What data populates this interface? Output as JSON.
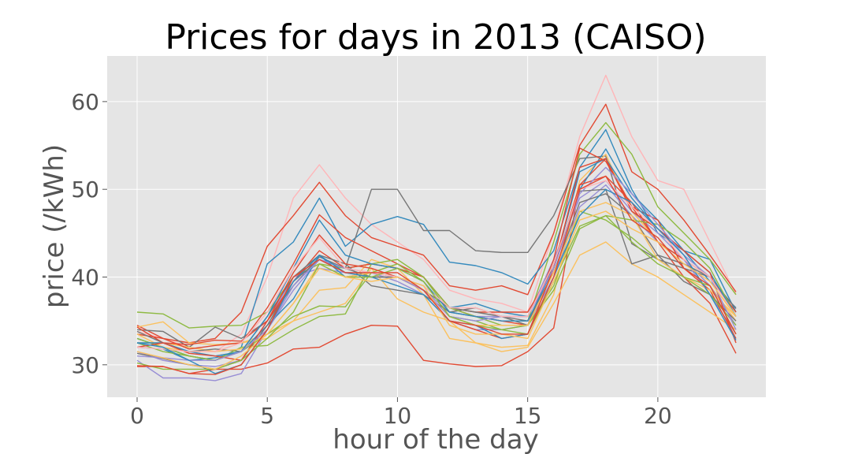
{
  "chart_data": {
    "type": "line",
    "title": "Prices for days in 2013 (CAISO)",
    "xlabel": "hour of the day",
    "ylabel": "price (/kWh)",
    "xlim": [
      -1.15,
      24.15
    ],
    "ylim": [
      26.3,
      65.2
    ],
    "xticks": [
      0,
      5,
      10,
      15,
      20
    ],
    "yticks": [
      30,
      40,
      50,
      60
    ],
    "grid": true,
    "legend": "none",
    "background": "#e5e5e5",
    "grid_color": "#ffffff",
    "x": [
      0,
      1,
      2,
      3,
      4,
      5,
      6,
      7,
      8,
      9,
      10,
      11,
      12,
      13,
      14,
      15,
      16,
      17,
      18,
      19,
      20,
      21,
      22,
      23
    ],
    "series": [
      {
        "color": "#ffb5b8",
        "values": [
          33.8,
          33.0,
          32.0,
          31.5,
          33.5,
          40.0,
          49.0,
          52.8,
          49.0,
          46.0,
          44.0,
          42.0,
          38.5,
          37.5,
          37.0,
          36.0,
          45.0,
          56.0,
          63.0,
          56.0,
          51.0,
          50.0,
          44.0,
          38.0
        ]
      },
      {
        "color": "#e24a33",
        "values": [
          34.5,
          33.0,
          32.5,
          33.0,
          36.0,
          43.5,
          47.0,
          50.8,
          47.0,
          44.5,
          43.5,
          42.5,
          39.0,
          38.5,
          39.0,
          38.0,
          45.0,
          55.0,
          59.7,
          52.0,
          50.0,
          46.5,
          42.5,
          38.3
        ]
      },
      {
        "color": "#e24a33",
        "values": [
          29.8,
          29.8,
          29.0,
          29.5,
          29.5,
          30.2,
          31.8,
          32.0,
          33.5,
          34.5,
          34.4,
          30.5,
          30.1,
          29.8,
          29.9,
          31.5,
          34.2,
          50.5,
          53.5,
          48.0,
          44.0,
          40.0,
          37.0,
          31.3
        ]
      },
      {
        "color": "#348abd",
        "values": [
          33.0,
          32.0,
          31.0,
          30.5,
          32.0,
          41.5,
          44.0,
          49.0,
          43.5,
          46.0,
          46.9,
          46.0,
          41.7,
          41.3,
          40.5,
          39.2,
          43.0,
          52.5,
          56.8,
          50.0,
          45.0,
          43.0,
          42.0,
          36.0
        ]
      },
      {
        "color": "#777777",
        "values": [
          34.0,
          33.8,
          32.0,
          34.3,
          33.0,
          35.0,
          39.0,
          42.3,
          41.0,
          50.0,
          50.0,
          45.3,
          45.3,
          43.0,
          42.8,
          42.8,
          47.0,
          53.5,
          53.8,
          43.8,
          42.0,
          41.0,
          40.0,
          36.0
        ]
      },
      {
        "color": "#8eba42",
        "values": [
          36.0,
          35.8,
          34.2,
          34.4,
          34.5,
          36.0,
          40.0,
          41.5,
          41.0,
          41.5,
          41.0,
          40.0,
          36.0,
          35.5,
          35.0,
          35.0,
          44.0,
          54.0,
          57.6,
          54.0,
          48.0,
          45.0,
          42.0,
          38.0
        ]
      },
      {
        "color": "#fbc15e",
        "values": [
          34.3,
          34.9,
          32.5,
          32.3,
          32.5,
          33.0,
          35.0,
          38.5,
          38.8,
          42.0,
          41.0,
          38.0,
          33.0,
          32.5,
          32.0,
          32.2,
          38.0,
          51.0,
          54.0,
          47.5,
          44.0,
          42.0,
          39.0,
          35.0
        ]
      },
      {
        "color": "#fbc15e",
        "values": [
          32.5,
          32.5,
          32.0,
          31.5,
          32.5,
          33.5,
          35.0,
          36.0,
          37.0,
          41.0,
          37.5,
          36.0,
          35.0,
          32.5,
          31.5,
          32.0,
          37.0,
          42.5,
          44.0,
          41.5,
          40.0,
          38.0,
          36.0,
          34.0
        ]
      },
      {
        "color": "#988ed5",
        "values": [
          30.5,
          28.5,
          28.5,
          28.2,
          29.0,
          34.0,
          38.5,
          42.0,
          40.5,
          40.5,
          39.5,
          38.0,
          35.0,
          34.0,
          34.0,
          34.5,
          40.0,
          48.0,
          50.5,
          47.0,
          44.0,
          42.0,
          39.0,
          34.5
        ]
      },
      {
        "color": "#988ed5",
        "values": [
          31.5,
          30.5,
          30.0,
          29.8,
          30.5,
          35.0,
          40.0,
          41.0,
          40.5,
          40.0,
          40.0,
          38.5,
          36.0,
          35.5,
          35.5,
          35.5,
          42.0,
          49.0,
          51.0,
          47.5,
          45.0,
          42.0,
          38.0,
          33.5
        ]
      },
      {
        "color": "#348abd",
        "values": [
          32.0,
          31.8,
          30.5,
          30.8,
          31.5,
          34.5,
          37.5,
          42.5,
          40.0,
          40.5,
          40.0,
          39.0,
          36.5,
          37.0,
          36.0,
          35.5,
          41.5,
          50.0,
          54.6,
          49.5,
          46.5,
          43.0,
          39.5,
          36.5
        ]
      },
      {
        "color": "#e24a33",
        "values": [
          33.5,
          33.0,
          31.8,
          32.2,
          32.5,
          36.5,
          41.5,
          47.1,
          44.5,
          43.0,
          41.5,
          40.0,
          36.5,
          35.5,
          35.0,
          34.5,
          42.0,
          54.7,
          53.2,
          48.0,
          46.5,
          41.0,
          38.5,
          33.0
        ]
      },
      {
        "color": "#e24a33",
        "values": [
          34.3,
          32.5,
          32.3,
          32.8,
          32.7,
          35.0,
          39.5,
          43.0,
          41.0,
          41.5,
          41.0,
          40.0,
          36.5,
          36.0,
          36.0,
          36.0,
          41.0,
          50.5,
          51.5,
          48.5,
          44.0,
          42.0,
          40.0,
          36.0
        ]
      },
      {
        "color": "#777777",
        "values": [
          33.8,
          32.5,
          31.5,
          31.8,
          31.5,
          35.5,
          40.0,
          42.5,
          41.5,
          39.0,
          38.5,
          38.0,
          36.0,
          36.5,
          35.5,
          34.5,
          41.5,
          49.8,
          50.0,
          41.5,
          42.5,
          41.5,
          40.0,
          36.4
        ]
      },
      {
        "color": "#777777",
        "values": [
          31.3,
          30.7,
          30.0,
          29.5,
          30.5,
          34.5,
          39.5,
          42.0,
          41.0,
          40.0,
          40.0,
          38.5,
          36.5,
          36.0,
          35.5,
          35.0,
          40.5,
          48.5,
          49.5,
          47.0,
          42.5,
          39.5,
          38.0,
          35.0
        ]
      },
      {
        "color": "#8eba42",
        "values": [
          33.0,
          32.0,
          31.0,
          30.5,
          32.0,
          32.2,
          34.0,
          35.5,
          35.8,
          41.5,
          42.0,
          40.0,
          36.5,
          35.5,
          34.5,
          34.5,
          38.5,
          45.5,
          47.0,
          46.5,
          46.0,
          44.0,
          41.0,
          35.5
        ]
      },
      {
        "color": "#8eba42",
        "values": [
          32.5,
          31.5,
          31.0,
          30.5,
          31.5,
          33.5,
          35.5,
          36.7,
          36.6,
          40.5,
          41.5,
          39.5,
          35.5,
          35.0,
          34.0,
          34.5,
          39.0,
          47.5,
          46.5,
          44.5,
          42.0,
          40.0,
          38.0,
          34.5
        ]
      },
      {
        "color": "#fbc15e",
        "values": [
          33.5,
          32.0,
          31.5,
          31.5,
          31.8,
          33.5,
          37.0,
          41.5,
          40.0,
          40.5,
          40.0,
          38.5,
          35.5,
          34.5,
          34.5,
          34.5,
          40.5,
          47.5,
          48.5,
          47.0,
          42.0,
          40.0,
          38.5,
          35.5
        ]
      },
      {
        "color": "#348abd",
        "values": [
          32.5,
          32.5,
          31.5,
          31.0,
          31.5,
          35.5,
          41.0,
          46.5,
          42.5,
          41.5,
          41.0,
          39.5,
          36.0,
          35.5,
          35.0,
          35.0,
          41.0,
          52.0,
          53.5,
          49.0,
          45.5,
          43.0,
          40.5,
          35.5
        ]
      },
      {
        "color": "#e24a33",
        "values": [
          32.0,
          32.5,
          31.3,
          31.0,
          30.5,
          35.0,
          40.5,
          44.8,
          41.5,
          41.0,
          40.0,
          38.5,
          35.0,
          34.0,
          33.0,
          33.5,
          41.0,
          52.5,
          53.5,
          47.5,
          45.5,
          43.0,
          40.5,
          32.5
        ]
      },
      {
        "color": "#988ed5",
        "values": [
          31.0,
          30.8,
          30.5,
          30.5,
          31.5,
          34.0,
          39.0,
          42.0,
          41.0,
          40.5,
          40.0,
          38.5,
          35.5,
          35.0,
          35.5,
          35.5,
          41.0,
          49.5,
          52.5,
          49.5,
          46.0,
          42.5,
          40.0,
          34.0
        ]
      },
      {
        "color": "#ffb5b8",
        "values": [
          32.0,
          31.8,
          31.5,
          31.5,
          32.5,
          36.0,
          41.0,
          44.5,
          41.0,
          40.5,
          40.0,
          39.0,
          36.5,
          36.5,
          35.5,
          35.5,
          41.5,
          50.0,
          51.0,
          48.0,
          45.5,
          42.0,
          40.0,
          35.5
        ]
      },
      {
        "color": "#348abd",
        "values": [
          32.5,
          32.0,
          30.5,
          29.0,
          30.0,
          34.0,
          39.5,
          42.5,
          40.5,
          40.0,
          39.0,
          38.0,
          35.0,
          34.5,
          33.0,
          33.5,
          40.0,
          47.0,
          50.0,
          48.5,
          45.5,
          42.5,
          38.0,
          32.8
        ]
      },
      {
        "color": "#8eba42",
        "values": [
          30.2,
          29.5,
          29.5,
          29.5,
          30.5,
          33.0,
          36.0,
          41.5,
          40.0,
          40.0,
          41.0,
          39.5,
          35.5,
          34.5,
          34.0,
          33.5,
          39.5,
          45.8,
          47.0,
          44.0,
          41.5,
          40.0,
          39.0,
          33.5
        ]
      },
      {
        "color": "#fbc15e",
        "values": [
          31.5,
          30.8,
          30.0,
          29.5,
          31.0,
          33.5,
          37.0,
          41.0,
          40.0,
          39.5,
          40.0,
          39.0,
          34.5,
          33.5,
          33.5,
          33.0,
          39.5,
          46.5,
          47.5,
          45.5,
          44.0,
          41.5,
          39.5,
          35.5
        ]
      },
      {
        "color": "#e24a33",
        "values": [
          29.9,
          29.8,
          29.0,
          28.9,
          30.0,
          34.0,
          40.0,
          42.0,
          40.5,
          40.5,
          40.5,
          38.5,
          35.0,
          34.5,
          33.5,
          33.5,
          40.0,
          50.0,
          51.5,
          46.5,
          44.5,
          41.0,
          39.0,
          33.5
        ]
      }
    ]
  }
}
